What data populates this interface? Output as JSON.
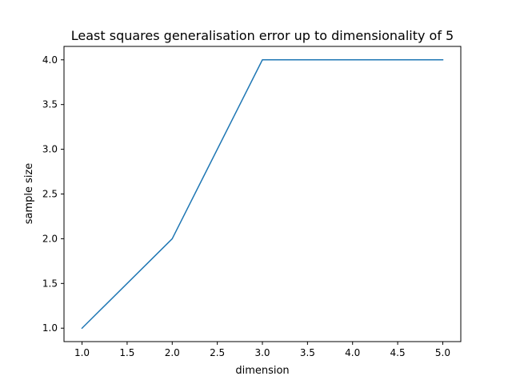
{
  "chart_data": {
    "type": "line",
    "title": "Least squares generalisation error up to dimensionality of 5",
    "xlabel": "dimension",
    "ylabel": "sample size",
    "xlim": [
      0.8,
      5.2
    ],
    "ylim": [
      0.85,
      4.15
    ],
    "xticks": [
      1.0,
      1.5,
      2.0,
      2.5,
      3.0,
      3.5,
      4.0,
      4.5,
      5.0
    ],
    "xtick_labels": [
      "1.0",
      "1.5",
      "2.0",
      "2.5",
      "3.0",
      "3.5",
      "4.0",
      "4.5",
      "5.0"
    ],
    "yticks": [
      1.0,
      1.5,
      2.0,
      2.5,
      3.0,
      3.5,
      4.0
    ],
    "ytick_labels": [
      "1.0",
      "1.5",
      "2.0",
      "2.5",
      "3.0",
      "3.5",
      "4.0"
    ],
    "grid": false,
    "x": [
      1,
      2,
      3,
      4,
      5
    ],
    "series": [
      {
        "values": [
          1,
          2,
          4,
          4,
          4
        ],
        "color": "#1f77b4"
      }
    ]
  }
}
